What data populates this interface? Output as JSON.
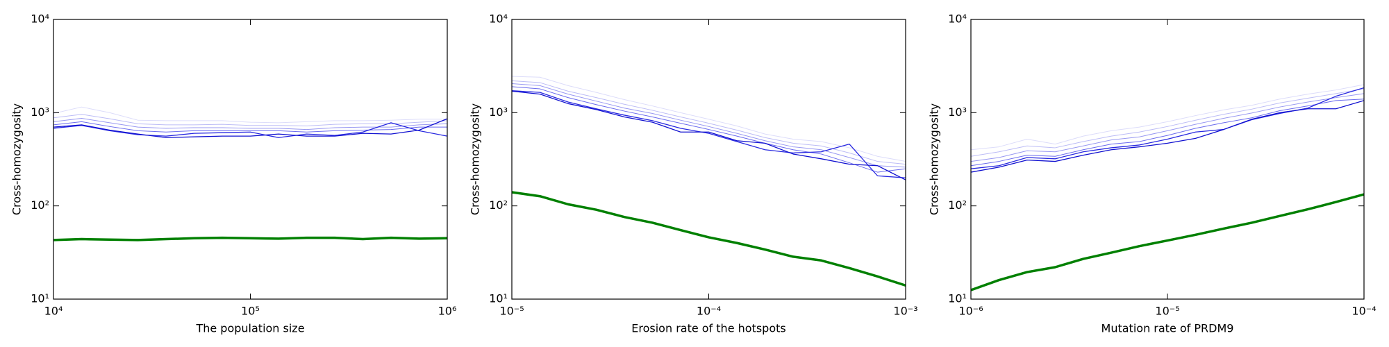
{
  "chart_data": [
    {
      "type": "line",
      "xlabel": "The population size",
      "ylabel": "Cross-homozygosity",
      "xscale": "log",
      "yscale": "log",
      "x": [
        10000,
        13895,
        19307,
        26827,
        37276,
        51795,
        71969,
        100000,
        138950,
        193070,
        268270,
        372760,
        517950,
        719690,
        1000000
      ],
      "xlim": [
        10000,
        1000000
      ],
      "ylim": [
        10,
        10000
      ],
      "xticks": [
        {
          "value": 10000,
          "label": "10⁴"
        },
        {
          "value": 100000,
          "label": "10⁵"
        },
        {
          "value": 1000000,
          "label": "10⁶"
        }
      ],
      "yticks": [
        {
          "value": 10,
          "label": "10¹"
        },
        {
          "value": 100,
          "label": "10²"
        },
        {
          "value": 1000,
          "label": "10³"
        },
        {
          "value": 10000,
          "label": "10⁴"
        }
      ],
      "series": [
        {
          "color": "#dcdcfa",
          "width": 1,
          "values": [
            980,
            1150,
            1000,
            830,
            820,
            820,
            820,
            790,
            780,
            800,
            820,
            820,
            830,
            850,
            850
          ]
        },
        {
          "color": "#bcbcf6",
          "width": 1,
          "values": [
            880,
            960,
            860,
            760,
            740,
            740,
            750,
            730,
            730,
            720,
            750,
            760,
            760,
            790,
            820
          ]
        },
        {
          "color": "#9898f2",
          "width": 1,
          "values": [
            800,
            870,
            780,
            700,
            680,
            690,
            690,
            680,
            680,
            660,
            690,
            700,
            700,
            740,
            760
          ]
        },
        {
          "color": "#6a6aee",
          "width": 1,
          "values": [
            740,
            800,
            710,
            640,
            620,
            640,
            640,
            640,
            640,
            620,
            640,
            650,
            660,
            700,
            700
          ]
        },
        {
          "color": "#2828e0",
          "width": 1.3,
          "values": [
            680,
            730,
            640,
            580,
            560,
            600,
            610,
            620,
            540,
            590,
            570,
            620,
            780,
            640,
            560
          ]
        },
        {
          "color": "#1010d0",
          "width": 1.3,
          "values": [
            700,
            740,
            650,
            590,
            540,
            550,
            560,
            560,
            590,
            560,
            560,
            600,
            590,
            650,
            860
          ]
        },
        {
          "color": "#008000",
          "width": 3.5,
          "values": [
            43,
            44,
            43.5,
            43,
            44,
            45,
            45.5,
            45,
            44.5,
            45.5,
            45.5,
            44,
            45.5,
            44.5,
            45
          ]
        }
      ]
    },
    {
      "type": "line",
      "xlabel": "Erosion rate of the hotspots",
      "ylabel": "Cross-homozygosity",
      "xscale": "log",
      "yscale": "log",
      "x": [
        1e-05,
        1.3895e-05,
        1.9307e-05,
        2.6827e-05,
        3.7276e-05,
        5.1795e-05,
        7.1969e-05,
        0.0001,
        0.00013895,
        0.00019307,
        0.00026827,
        0.00037276,
        0.00051795,
        0.00071969,
        0.001
      ],
      "xlim": [
        1e-05,
        0.001
      ],
      "ylim": [
        10,
        10000
      ],
      "xticks": [
        {
          "value": 1e-05,
          "label": "10⁻⁵"
        },
        {
          "value": 0.0001,
          "label": "10⁻⁴"
        },
        {
          "value": 0.001,
          "label": "10⁻³"
        }
      ],
      "yticks": [
        {
          "value": 10,
          "label": "10¹"
        },
        {
          "value": 100,
          "label": "10²"
        },
        {
          "value": 1000,
          "label": "10³"
        },
        {
          "value": 10000,
          "label": "10⁴"
        }
      ],
      "series": [
        {
          "color": "#dcdcfa",
          "width": 1,
          "values": [
            2450,
            2400,
            1950,
            1650,
            1380,
            1180,
            1000,
            850,
            720,
            590,
            520,
            490,
            420,
            340,
            300
          ]
        },
        {
          "color": "#bcbcf6",
          "width": 1,
          "values": [
            2200,
            2100,
            1700,
            1450,
            1230,
            1060,
            900,
            770,
            650,
            540,
            470,
            440,
            370,
            300,
            280
          ]
        },
        {
          "color": "#9898f2",
          "width": 1,
          "values": [
            2050,
            1950,
            1580,
            1330,
            1120,
            980,
            830,
            710,
            600,
            500,
            430,
            400,
            330,
            270,
            260
          ]
        },
        {
          "color": "#6a6aee",
          "width": 1,
          "values": [
            1900,
            1800,
            1450,
            1220,
            1040,
            900,
            770,
            660,
            560,
            470,
            400,
            360,
            290,
            230,
            250
          ]
        },
        {
          "color": "#2828e0",
          "width": 1.3,
          "values": [
            1720,
            1650,
            1300,
            1100,
            940,
            820,
            680,
            600,
            490,
            400,
            370,
            380,
            460,
            210,
            200
          ]
        },
        {
          "color": "#1010d0",
          "width": 1.3,
          "values": [
            1700,
            1580,
            1250,
            1080,
            900,
            790,
            620,
            620,
            500,
            470,
            360,
            320,
            280,
            270,
            190
          ]
        },
        {
          "color": "#008000",
          "width": 3.5,
          "values": [
            140,
            127,
            104,
            91,
            76,
            66,
            55,
            46,
            40,
            34,
            28.5,
            26,
            21.5,
            17.5,
            14
          ]
        }
      ]
    },
    {
      "type": "line",
      "xlabel": "Mutation rate of PRDM9",
      "ylabel": "Cross-homozygosity",
      "xscale": "log",
      "yscale": "log",
      "x": [
        1e-06,
        1.3895e-06,
        1.9307e-06,
        2.6827e-06,
        3.7276e-06,
        5.1795e-06,
        7.1969e-06,
        1e-05,
        1.3895e-05,
        1.9307e-05,
        2.6827e-05,
        3.7276e-05,
        5.1795e-05,
        7.1969e-05,
        0.0001
      ],
      "xlim": [
        1e-06,
        0.0001
      ],
      "ylim": [
        10,
        10000
      ],
      "xticks": [
        {
          "value": 1e-06,
          "label": "10⁻⁶"
        },
        {
          "value": 1e-05,
          "label": "10⁻⁵"
        },
        {
          "value": 0.0001,
          "label": "10⁻⁴"
        }
      ],
      "yticks": [
        {
          "value": 10,
          "label": "10¹"
        },
        {
          "value": 100,
          "label": "10²"
        },
        {
          "value": 1000,
          "label": "10³"
        },
        {
          "value": 10000,
          "label": "10⁴"
        }
      ],
      "series": [
        {
          "color": "#dcdcfa",
          "width": 1,
          "values": [
            400,
            430,
            520,
            460,
            560,
            640,
            700,
            800,
            930,
            1070,
            1200,
            1400,
            1580,
            1750,
            2000
          ]
        },
        {
          "color": "#bcbcf6",
          "width": 1,
          "values": [
            340,
            380,
            440,
            420,
            490,
            560,
            620,
            710,
            830,
            960,
            1090,
            1270,
            1430,
            1600,
            1800
          ]
        },
        {
          "color": "#9898f2",
          "width": 1,
          "values": [
            300,
            330,
            390,
            380,
            440,
            510,
            550,
            640,
            750,
            870,
            990,
            1150,
            1300,
            1450,
            1600
          ]
        },
        {
          "color": "#6a6aee",
          "width": 1,
          "values": [
            270,
            300,
            350,
            340,
            400,
            460,
            490,
            570,
            680,
            780,
            880,
            1050,
            1180,
            1350,
            1400
          ]
        },
        {
          "color": "#2828e0",
          "width": 1.3,
          "values": [
            250,
            270,
            330,
            320,
            380,
            420,
            450,
            520,
            620,
            660,
            840,
            980,
            1120,
            1500,
            1850
          ]
        },
        {
          "color": "#1010d0",
          "width": 1.3,
          "values": [
            230,
            260,
            310,
            300,
            350,
            400,
            430,
            470,
            530,
            660,
            850,
            1000,
            1100,
            1100,
            1350
          ]
        },
        {
          "color": "#008000",
          "width": 3.5,
          "values": [
            12.5,
            16,
            19.5,
            22,
            27,
            31.5,
            37,
            42.5,
            49,
            57,
            66,
            78,
            92,
            110,
            133
          ]
        }
      ]
    }
  ]
}
